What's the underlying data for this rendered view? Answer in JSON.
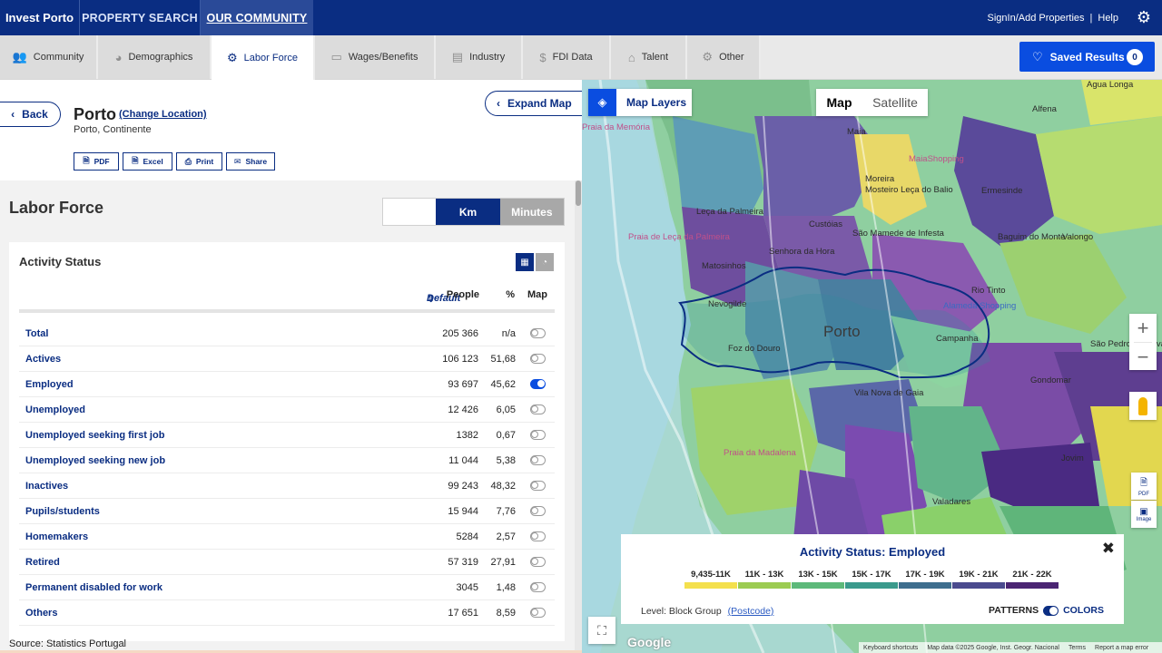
{
  "topnav": {
    "brand": "Invest Porto",
    "items": [
      "PROPERTY SEARCH",
      "OUR COMMUNITY"
    ],
    "signin": "SignIn/Add Properties",
    "divider": "|",
    "help": "Help"
  },
  "tabs": [
    {
      "label": "Community",
      "icon": "people-icon"
    },
    {
      "label": "Demographics",
      "icon": "pie-icon"
    },
    {
      "label": "Labor Force",
      "icon": "gears-icon"
    },
    {
      "label": "Wages/Benefits",
      "icon": "money-icon"
    },
    {
      "label": "Industry",
      "icon": "briefcase-icon"
    },
    {
      "label": "FDI Data",
      "icon": "dollar-icon"
    },
    {
      "label": "Talent",
      "icon": "institution-icon"
    },
    {
      "label": "Other",
      "icon": "gears-icon"
    }
  ],
  "saved_results": {
    "label": "Saved Results",
    "count": "0"
  },
  "location": {
    "back": "Back",
    "name": "Porto",
    "change": "(Change Location)",
    "sub": "Porto, Continente",
    "expand_map": "Expand Map",
    "exports": [
      "PDF",
      "Excel",
      "Print",
      "Share"
    ]
  },
  "section": {
    "title": "Labor Force",
    "units": [
      "",
      "Km",
      "Minutes"
    ],
    "active_unit": "Km"
  },
  "table": {
    "title": "Activity Status",
    "headers": {
      "default": "Default",
      "people": "People",
      "pct": "%",
      "map": "Map"
    },
    "rows": [
      {
        "label": "Total",
        "people": "205 366",
        "pct": "n/a",
        "map_on": false
      },
      {
        "label": "Actives",
        "people": "106 123",
        "pct": "51,68",
        "map_on": false
      },
      {
        "label": "Employed",
        "people": "93 697",
        "pct": "45,62",
        "map_on": true
      },
      {
        "label": "Unemployed",
        "people": "12 426",
        "pct": "6,05",
        "map_on": false
      },
      {
        "label": "Unemployed seeking first job",
        "people": "1382",
        "pct": "0,67",
        "map_on": false
      },
      {
        "label": "Unemployed seeking new job",
        "people": "11 044",
        "pct": "5,38",
        "map_on": false
      },
      {
        "label": "Inactives",
        "people": "99 243",
        "pct": "48,32",
        "map_on": false
      },
      {
        "label": "Pupils/students",
        "people": "15 944",
        "pct": "7,76",
        "map_on": false
      },
      {
        "label": "Homemakers",
        "people": "5284",
        "pct": "2,57",
        "map_on": false
      },
      {
        "label": "Retired",
        "people": "57 319",
        "pct": "27,91",
        "map_on": false
      },
      {
        "label": "Permanent disabled for work",
        "people": "3045",
        "pct": "1,48",
        "map_on": false
      },
      {
        "label": "Others",
        "people": "17 651",
        "pct": "8,59",
        "map_on": false
      }
    ],
    "source": "Source: Statistics Portugal"
  },
  "map": {
    "layers_label": "Map Layers",
    "type_map": "Map",
    "type_satellite": "Satellite",
    "zoom_in": "+",
    "zoom_out": "−",
    "pdf": "PDF",
    "image": "Image",
    "google": "Google",
    "attribution": [
      "Keyboard shortcuts",
      "Map data ©2025 Google, Inst. Geogr. Nacional",
      "Terms",
      "Report a map error"
    ],
    "places": [
      "Porto",
      "Matosinhos",
      "Maia",
      "Ermesinde",
      "Valongo",
      "Rio Tinto",
      "Gondomar",
      "Vila Nova de Gaia",
      "Leça da Palmeira",
      "Senhora da Hora",
      "São Mamede de Infesta",
      "Foz do Douro",
      "Nevogilde",
      "Campanha",
      "Alfena",
      "Agua Longa",
      "Baguim do Monte",
      "São Pedro da Cova",
      "Jovim",
      "Valadares",
      "Praia da Madalena",
      "Praia da Memória",
      "Praia de Leça da Palmeira",
      "Moreira",
      "Custóias",
      "Alameda Shopping",
      "MaiaShopping",
      "Mosteiro Leça do Balio"
    ]
  },
  "legend": {
    "title": "Activity Status: Employed",
    "items": [
      {
        "label": "9,435-11K",
        "color": "#f4e04d"
      },
      {
        "label": "11K - 13K",
        "color": "#9ccc52"
      },
      {
        "label": "13K - 15K",
        "color": "#5db97a"
      },
      {
        "label": "15K - 17K",
        "color": "#3a9a8c"
      },
      {
        "label": "17K - 19K",
        "color": "#3e6e8e"
      },
      {
        "label": "19K - 21K",
        "color": "#4a4a8e"
      },
      {
        "label": "21K - 22K",
        "color": "#4b2573"
      }
    ],
    "level_prefix": "Level: Block Group",
    "level_alt": "(Postcode)",
    "patterns": "PATTERNS",
    "colors": "COLORS"
  }
}
